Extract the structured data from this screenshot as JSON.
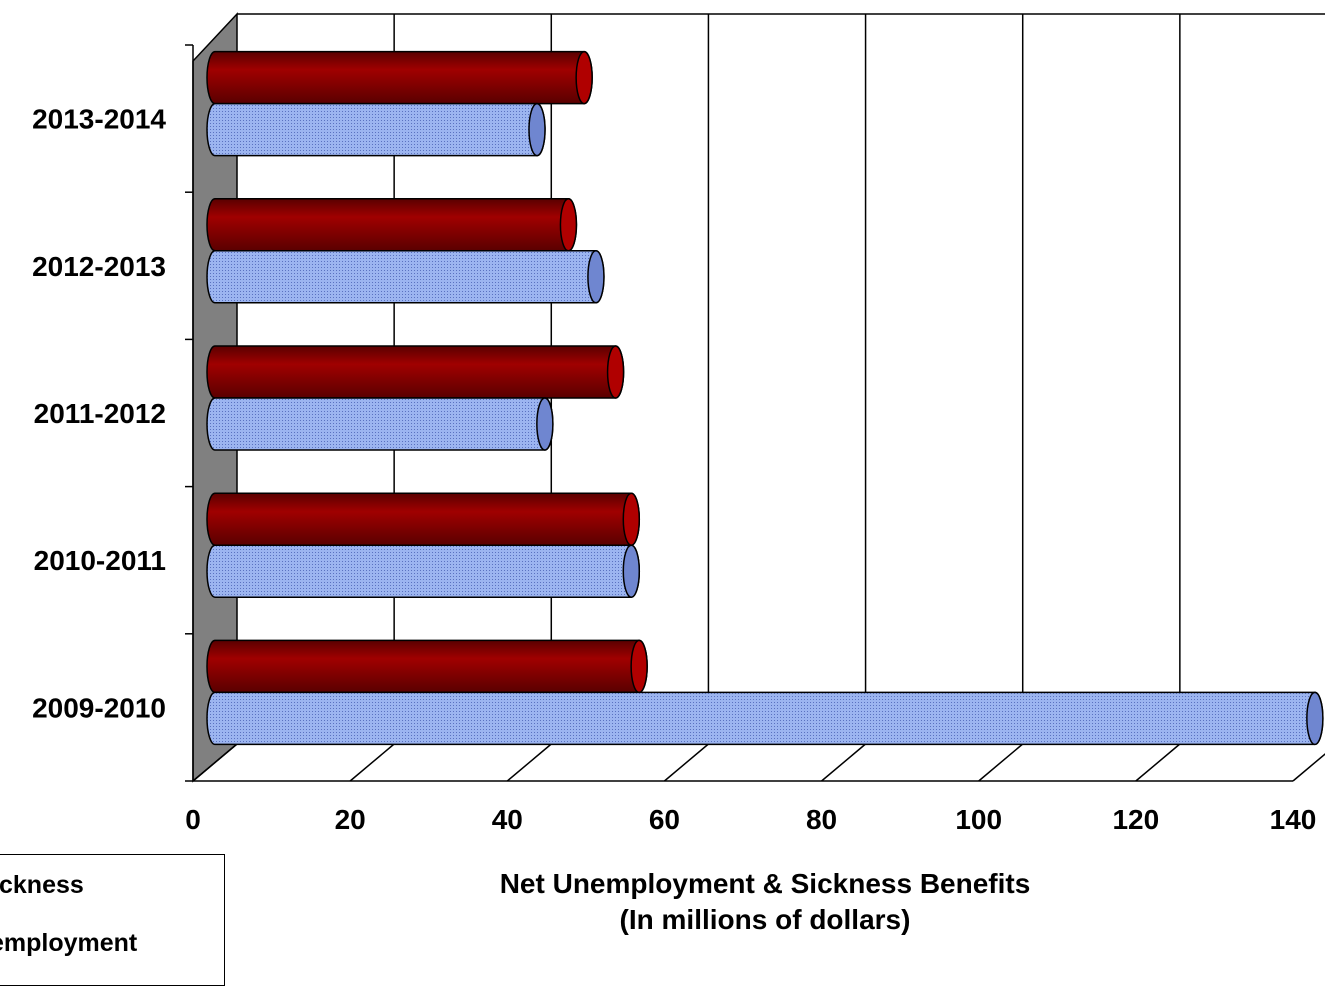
{
  "chart_data": {
    "type": "bar",
    "orientation": "horizontal",
    "categories": [
      "2009-2010",
      "2010-2011",
      "2011-2012",
      "2012-2013",
      "2013-2014"
    ],
    "series": [
      {
        "name": "Sickness",
        "color": "#8B0000",
        "values": [
          55,
          54,
          52,
          46,
          48
        ]
      },
      {
        "name": "Unemployment",
        "color": "#8FA8E8",
        "values": [
          141,
          54,
          43,
          49.5,
          42
        ]
      }
    ],
    "xlim": [
      0,
      140
    ],
    "xticks": [
      0,
      20,
      40,
      60,
      80,
      100,
      120,
      140
    ],
    "xlabel_line1": "Net Unemployment & Sickness Benefits",
    "xlabel_line2": "(In millions of dollars)",
    "legend": {
      "visible_labels": [
        "ckness",
        "employment"
      ],
      "placement": "bottom-left"
    },
    "grid": true,
    "style": "3d-cylinder"
  }
}
